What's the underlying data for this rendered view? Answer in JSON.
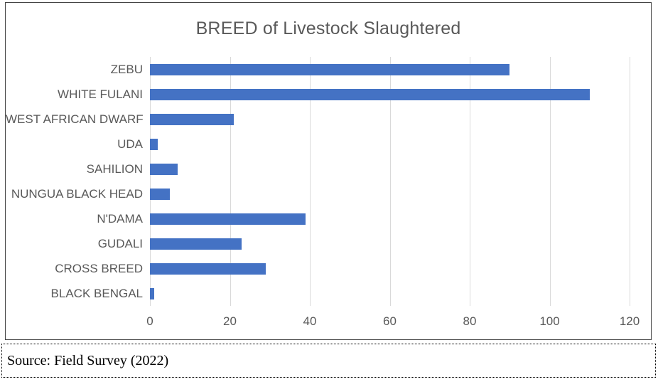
{
  "chart_data": {
    "type": "bar",
    "orientation": "horizontal",
    "title": "BREED of Livestock Slaughtered",
    "categories": [
      "ZEBU",
      "WHITE FULANI",
      "WEST AFRICAN DWARF",
      "UDA",
      "SAHILION",
      "NUNGUA BLACK HEAD",
      "N'DAMA",
      "GUDALI",
      "CROSS BREED",
      "BLACK BENGAL"
    ],
    "values": [
      90,
      110,
      21,
      2,
      7,
      5,
      39,
      23,
      29,
      1
    ],
    "xlabel": "",
    "ylabel": "",
    "xlim": [
      0,
      120
    ],
    "xticks": [
      0,
      20,
      40,
      60,
      80,
      100,
      120
    ],
    "grid": "vertical-gridlines",
    "legend": "none",
    "bar_color": "#4472C4"
  },
  "source": {
    "text": "Source: Field Survey (2022)"
  },
  "colors": {
    "bar": "#4472C4",
    "title_text": "#595959",
    "axis_text": "#595959",
    "gridline": "#D9D9D9",
    "chart_border": "#444444",
    "source_border": "#000000"
  }
}
